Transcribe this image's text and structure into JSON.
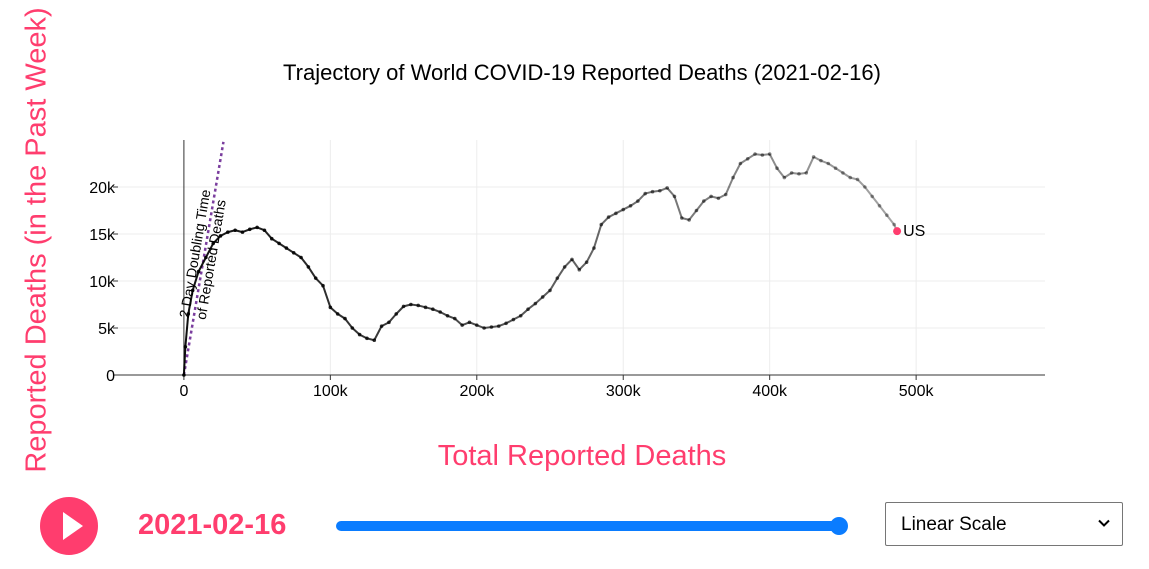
{
  "chart_data": {
    "type": "line",
    "title": "Trajectory of World COVID-19 Reported Deaths (2021-02-16)",
    "xlabel": "Total Reported Deaths",
    "ylabel": "Reported Deaths (in the Past Week)",
    "xlim": [
      -45000,
      588000
    ],
    "ylim": [
      0,
      25000
    ],
    "x_ticks": [
      0,
      100000,
      200000,
      300000,
      400000,
      500000
    ],
    "x_tick_labels": [
      "0",
      "100k",
      "200k",
      "300k",
      "400k",
      "500k"
    ],
    "y_ticks": [
      0,
      5000,
      10000,
      15000,
      20000
    ],
    "y_tick_labels": [
      "0",
      "5k",
      "10k",
      "15k",
      "20k"
    ],
    "grid": true,
    "series": [
      {
        "name": "US",
        "color": "#000000",
        "marker_color": "#ff3d6e",
        "x": [
          0,
          1000,
          3000,
          6000,
          10000,
          15000,
          20000,
          25000,
          30000,
          35000,
          40000,
          45000,
          50000,
          55000,
          60000,
          65000,
          70000,
          75000,
          80000,
          85000,
          90000,
          95000,
          100000,
          105000,
          110000,
          115000,
          120000,
          125000,
          130000,
          135000,
          140000,
          145000,
          150000,
          155000,
          160000,
          165000,
          170000,
          175000,
          180000,
          185000,
          190000,
          195000,
          200000,
          205000,
          210000,
          215000,
          220000,
          225000,
          230000,
          235000,
          240000,
          245000,
          250000,
          255000,
          260000,
          265000,
          270000,
          275000,
          280000,
          285000,
          290000,
          295000,
          300000,
          305000,
          310000,
          315000,
          320000,
          325000,
          330000,
          335000,
          340000,
          345000,
          350000,
          355000,
          360000,
          365000,
          370000,
          375000,
          380000,
          385000,
          390000,
          395000,
          400000,
          405000,
          410000,
          415000,
          420000,
          425000,
          430000,
          435000,
          440000,
          445000,
          450000,
          455000,
          460000,
          465000,
          470000,
          475000,
          480000,
          485000,
          487000
        ],
        "y": [
          0,
          3000,
          6500,
          9000,
          11000,
          12500,
          14000,
          14800,
          15200,
          15400,
          15200,
          15500,
          15700,
          15400,
          14500,
          14000,
          13500,
          13000,
          12500,
          11500,
          10300,
          9500,
          7200,
          6500,
          6000,
          5000,
          4300,
          3900,
          3700,
          5200,
          5600,
          6500,
          7300,
          7500,
          7400,
          7200,
          7000,
          6700,
          6300,
          6000,
          5300,
          5600,
          5300,
          5000,
          5100,
          5200,
          5500,
          5900,
          6300,
          7000,
          7600,
          8300,
          9000,
          10300,
          11500,
          12300,
          11200,
          12000,
          13500,
          16000,
          16800,
          17200,
          17600,
          18000,
          18500,
          19300,
          19500,
          19600,
          19900,
          19000,
          16700,
          16500,
          17500,
          18500,
          19000,
          18800,
          19200,
          21000,
          22500,
          23000,
          23500,
          23400,
          23500,
          22000,
          21000,
          21500,
          21400,
          21500,
          23200,
          22800,
          22500,
          22000,
          21500,
          21000,
          20800,
          20000,
          19000,
          18000,
          17000,
          16000,
          15300
        ]
      }
    ],
    "annotations": [
      {
        "text": "US",
        "x": 487000,
        "y": 15300
      },
      {
        "text": "2 Day Doubling Time",
        "color": "#000000"
      },
      {
        "text": "of Reported Deaths",
        "color": "#000000"
      }
    ],
    "doubling_line": {
      "color": "#7a3d9e",
      "x": [
        0,
        27000
      ],
      "y": [
        0,
        24800
      ]
    }
  },
  "controls": {
    "current_date": "2021-02-16",
    "slider_value": 1.0,
    "scale_selected": "Linear Scale",
    "accent_color": "#ff3d6e",
    "slider_color": "#0a7cff",
    "icons": {
      "play": "play-icon",
      "select": "chevron-down-icon"
    }
  }
}
